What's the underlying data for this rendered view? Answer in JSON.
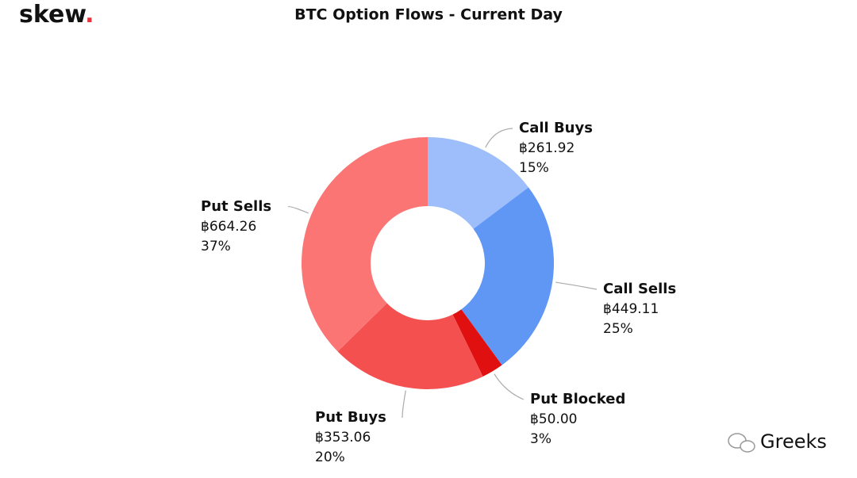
{
  "logo": {
    "text": "skew",
    "dot": "."
  },
  "watermark": "Greeks",
  "chart_data": {
    "type": "donut",
    "title": "BTC Option Flows - Current Day",
    "categories": [
      "Call Buys",
      "Call Sells",
      "Put Blocked",
      "Put Buys",
      "Put Sells"
    ],
    "values": [
      261.92,
      449.11,
      50.0,
      353.06,
      664.26
    ],
    "value_labels": [
      "฿261.92",
      "฿449.11",
      "฿50.00",
      "฿353.06",
      "฿664.26"
    ],
    "percent_labels": [
      "15%",
      "25%",
      "3%",
      "20%",
      "37%"
    ],
    "colors": [
      "#9dbdfb",
      "#6197f4",
      "#e01010",
      "#f55050",
      "#fb7575"
    ]
  }
}
